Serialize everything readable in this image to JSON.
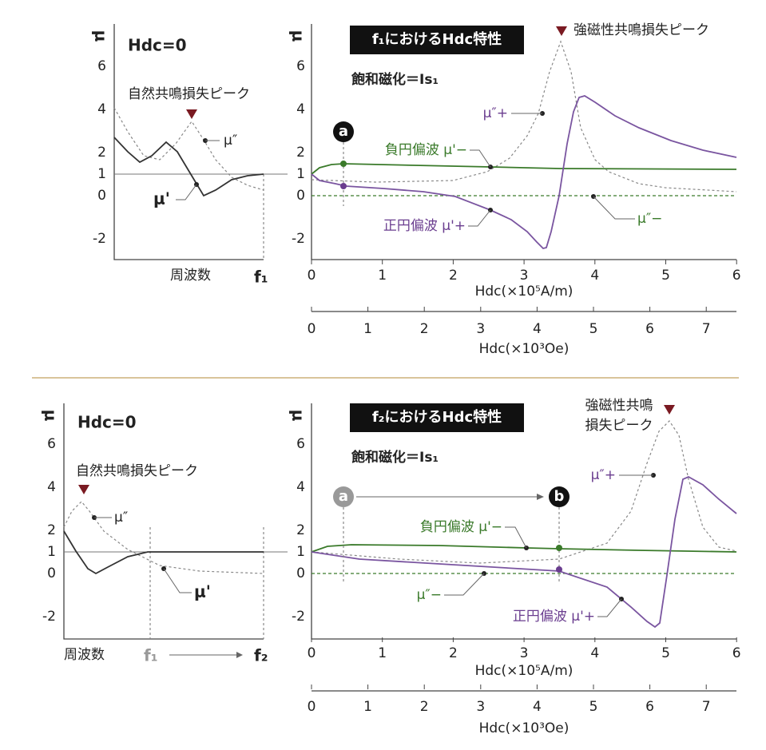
{
  "panels": [
    {
      "left": {
        "y_label": "μ",
        "title": "Hdc=0",
        "yticks": [
          6,
          4,
          2,
          1,
          0,
          -2
        ],
        "peak_label": "自然共鳴損失ピーク",
        "mu2_label": "μ″",
        "mu1_label": "μ'",
        "x_label": "周波数",
        "freqs": [
          "f₁"
        ]
      },
      "right": {
        "y_label": "μ",
        "title": "f₁におけるHdc特性",
        "subtitle": "飽和磁化＝Is₁",
        "yticks": [
          6,
          4,
          2,
          1,
          0,
          -2
        ],
        "xticks": [
          0,
          1,
          2,
          3,
          4,
          5,
          6
        ],
        "x_label": "Hdc(×10⁵A/m)",
        "x2ticks": [
          0,
          1,
          2,
          3,
          4,
          5,
          6,
          7
        ],
        "x2_label": "Hdc(×10³Oe)",
        "peak_label": [
          "強磁性共鳴損失ピーク"
        ],
        "markers": [
          "a"
        ],
        "mu1_minus": "負円偏波 μ'−",
        "mu1_plus": "正円偏波 μ'+",
        "mu2_plus": "μ″+",
        "mu2_minus": "μ″−"
      }
    },
    {
      "left": {
        "y_label": "μ",
        "title": "Hdc=0",
        "yticks": [
          6,
          4,
          2,
          1,
          0,
          -2
        ],
        "peak_label": "自然共鳴損失ピーク",
        "mu2_label": "μ″",
        "mu1_label": "μ'",
        "x_label": "周波数",
        "freqs": [
          "f₁",
          "f₂"
        ]
      },
      "right": {
        "y_label": "μ",
        "title": "f₂におけるHdc特性",
        "subtitle": "飽和磁化＝Is₁",
        "yticks": [
          6,
          4,
          2,
          1,
          0,
          -2
        ],
        "xticks": [
          0,
          1,
          2,
          3,
          4,
          5,
          6
        ],
        "x_label": "Hdc(×10⁵A/m)",
        "x2ticks": [
          0,
          1,
          2,
          3,
          4,
          5,
          6,
          7
        ],
        "x2_label": "Hdc(×10³Oe)",
        "peak_label": [
          "強磁性共鳴",
          "損失ピーク"
        ],
        "markers": [
          "a",
          "b"
        ],
        "mu1_minus": "負円偏波 μ'−",
        "mu1_plus": "正円偏波 μ'+",
        "mu2_plus": "μ″+",
        "mu2_minus": "μ″−"
      }
    }
  ]
}
